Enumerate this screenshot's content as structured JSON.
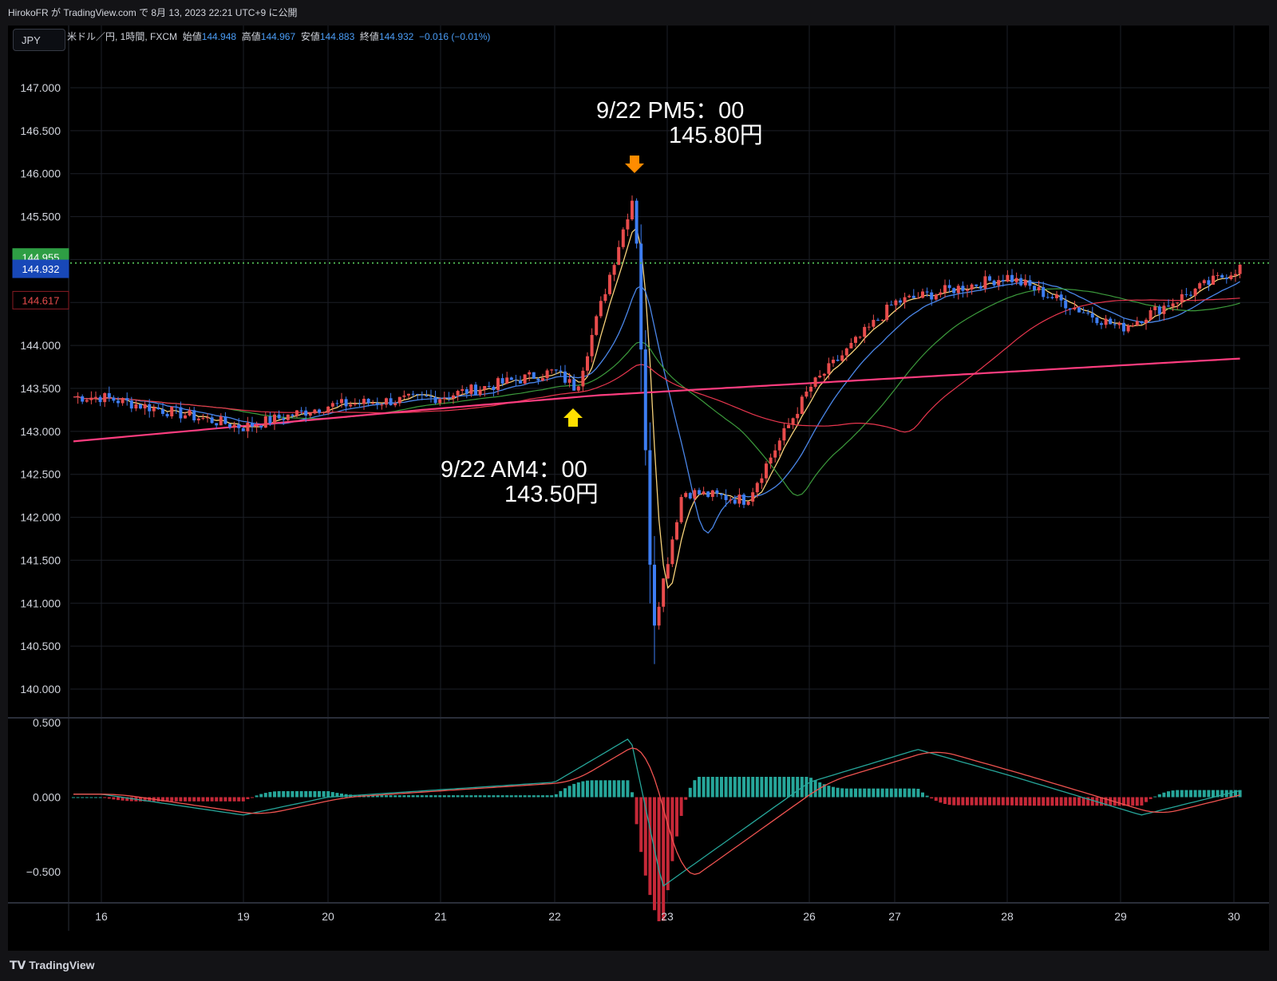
{
  "header": {
    "publish_line": "HirokoFR が TradingView.com で 8月 13, 2023 22:21 UTC+9 に公開"
  },
  "symbol_button": "JPY",
  "legend": {
    "title": "米ドル／円, 1時間, FXCM",
    "open_label": "始値",
    "open": "144.948",
    "high_label": "高値",
    "high": "144.967",
    "low_label": "安値",
    "low": "144.883",
    "close_label": "終値",
    "close": "144.932",
    "change": "−0.016 (−0.01%)"
  },
  "price_badges": {
    "green": "144.955",
    "blue": "144.932",
    "red": "144.617"
  },
  "annotations": {
    "top_line1": "9/22 PM5：00",
    "top_line2": "145.80円",
    "bottom_line1": "9/22 AM4：00",
    "bottom_line2": "143.50円"
  },
  "footer": {
    "brand": "TradingView"
  },
  "colors": {
    "up_candle": "#e84c4c",
    "down_candle": "#3d7df2",
    "ma_fast": "#f7d27a",
    "ma_mid": "#4a86e8",
    "ma_green": "#3c9b3c",
    "ma_red": "#e8364e",
    "ma_pink": "#ff3d7f",
    "hist_pos": "#26a69a",
    "hist_neg": "#c62838",
    "macd_line": "#26a69a",
    "signal_line": "#ef5350",
    "arrow_top": "#ff8c00",
    "arrow_bottom": "#ffe000",
    "current_price_line": "#4caf50"
  },
  "chart_data": [
    {
      "type": "candlestick",
      "title": "米ドル／円, 1時間, FXCM",
      "ylim": [
        140.0,
        147.0
      ],
      "yticks": [
        "147.000",
        "146.500",
        "146.000",
        "145.500",
        "145.000",
        "144.500",
        "144.000",
        "143.500",
        "143.000",
        "142.500",
        "142.000",
        "141.500",
        "141.000",
        "140.500",
        "140.000"
      ],
      "xticks": [
        "16",
        "19",
        "20",
        "21",
        "22",
        "23",
        "26",
        "27",
        "28",
        "29",
        "30"
      ],
      "price_path": [
        [
          "16",
          143.4
        ],
        [
          "19",
          143.05
        ],
        [
          "20",
          143.3
        ],
        [
          "21",
          143.4
        ],
        [
          "22",
          143.7
        ],
        [
          "22 AM4",
          143.5
        ],
        [
          "22 PM5",
          145.8
        ],
        [
          "22 late",
          140.7
        ],
        [
          "23",
          142.3
        ],
        [
          "25",
          142.2
        ],
        [
          "26",
          143.5
        ],
        [
          "27",
          144.5
        ],
        [
          "28",
          144.8
        ],
        [
          "29",
          144.2
        ],
        [
          "30",
          144.93
        ]
      ],
      "current_price": 144.932,
      "annotations": [
        {
          "text": "9/22 PM5：00 145.80円",
          "date": "22",
          "value": 145.8,
          "marker": "down-arrow"
        },
        {
          "text": "9/22 AM4：00 143.50円",
          "date": "22",
          "value": 143.5,
          "marker": "up-arrow"
        }
      ]
    },
    {
      "type": "line",
      "name": "MACD",
      "ylim": [
        -0.6,
        0.5
      ],
      "yticks": [
        "0.500",
        "0.000",
        "−0.500"
      ],
      "xticks": [
        "16",
        "19",
        "20",
        "21",
        "22",
        "23",
        "26",
        "27",
        "28",
        "29",
        "30"
      ],
      "macd_path": [
        [
          "16",
          0.02
        ],
        [
          "19",
          -0.12
        ],
        [
          "20",
          0.0
        ],
        [
          "21",
          0.05
        ],
        [
          "22",
          0.1
        ],
        [
          "22 PM5",
          0.4
        ],
        [
          "23",
          -0.6
        ],
        [
          "26",
          0.1
        ],
        [
          "27",
          0.32
        ],
        [
          "28",
          0.15
        ],
        [
          "29",
          -0.12
        ],
        [
          "30",
          0.05
        ]
      ]
    }
  ]
}
